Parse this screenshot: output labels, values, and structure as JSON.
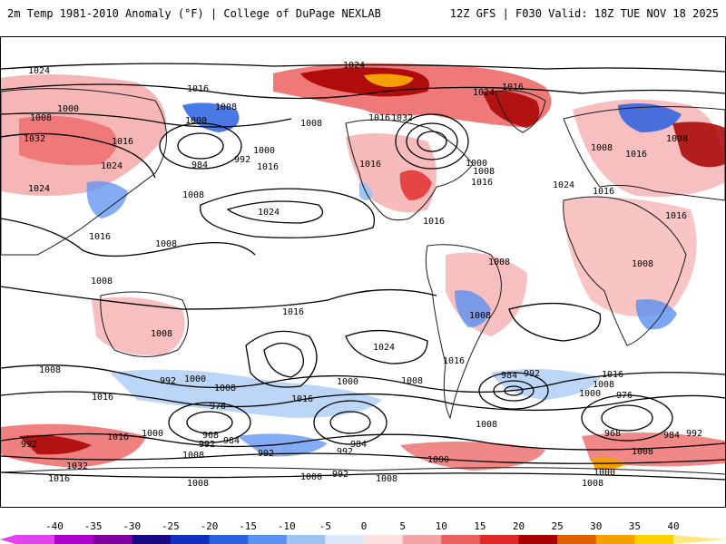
{
  "header": {
    "title": "2m Temp 1981-2010 Anomaly (°F) | College of DuPage NEXLAB",
    "run_info": "12Z GFS | F030 Valid: 18Z TUE NOV 18 2025"
  },
  "colors": {
    "land_outline": "#1a1a1a",
    "contour": "#000000"
  },
  "colorbar": {
    "ticks": [
      "-40",
      "-35",
      "-30",
      "-25",
      "-20",
      "-15",
      "-10",
      "-5",
      "0",
      "5",
      "10",
      "15",
      "20",
      "25",
      "30",
      "35",
      "40"
    ],
    "colors": [
      "#e040f0",
      "#b000d0",
      "#8000a0",
      "#1a0a8a",
      "#1030c0",
      "#2a60e0",
      "#5a90f0",
      "#9ec4f4",
      "#dbe9fb",
      "#fbe0e0",
      "#f4a4a4",
      "#ec6060",
      "#e02828",
      "#a80000",
      "#e06000",
      "#f4a000",
      "#ffd000",
      "#ffe880"
    ]
  },
  "contour_labels": [
    {
      "text": "1024"
    },
    {
      "text": "1016"
    },
    {
      "text": "1008"
    },
    {
      "text": "1000"
    },
    {
      "text": "1032"
    },
    {
      "text": "1016"
    },
    {
      "text": "1024"
    },
    {
      "text": "1024"
    },
    {
      "text": "1016"
    },
    {
      "text": "1008"
    },
    {
      "text": "1008"
    },
    {
      "text": "1000"
    },
    {
      "text": "1008"
    },
    {
      "text": "984"
    },
    {
      "text": "992"
    },
    {
      "text": "1000"
    },
    {
      "text": "1016"
    },
    {
      "text": "1008"
    },
    {
      "text": "1024"
    },
    {
      "text": "1008"
    },
    {
      "text": "1024"
    },
    {
      "text": "1032"
    },
    {
      "text": "1016"
    },
    {
      "text": "1024"
    },
    {
      "text": "1016"
    },
    {
      "text": "1000"
    },
    {
      "text": "1008"
    },
    {
      "text": "1016"
    },
    {
      "text": "1024"
    },
    {
      "text": "1016"
    },
    {
      "text": "1008"
    },
    {
      "text": "1008"
    },
    {
      "text": "1016"
    },
    {
      "text": "1016"
    },
    {
      "text": "1016"
    },
    {
      "text": "1008"
    },
    {
      "text": "1008"
    },
    {
      "text": "1016"
    },
    {
      "text": "1008"
    },
    {
      "text": "1024"
    },
    {
      "text": "1016"
    },
    {
      "text": "1008"
    },
    {
      "text": "1016"
    },
    {
      "text": "1008"
    },
    {
      "text": "1016"
    },
    {
      "text": "992"
    },
    {
      "text": "1000"
    },
    {
      "text": "1008"
    },
    {
      "text": "1016"
    },
    {
      "text": "976"
    },
    {
      "text": "1000"
    },
    {
      "text": "1008"
    },
    {
      "text": "968"
    },
    {
      "text": "1016"
    },
    {
      "text": "1000"
    },
    {
      "text": "984"
    },
    {
      "text": "992"
    },
    {
      "text": "1008"
    },
    {
      "text": "992"
    },
    {
      "text": "984"
    },
    {
      "text": "992"
    },
    {
      "text": "1000"
    },
    {
      "text": "1008"
    },
    {
      "text": "1032"
    },
    {
      "text": "992"
    },
    {
      "text": "1016"
    },
    {
      "text": "1008"
    },
    {
      "text": "1000"
    },
    {
      "text": "992"
    },
    {
      "text": "1008"
    },
    {
      "text": "984"
    },
    {
      "text": "992"
    },
    {
      "text": "1016"
    },
    {
      "text": "1000"
    },
    {
      "text": "1008"
    },
    {
      "text": "976"
    },
    {
      "text": "968"
    },
    {
      "text": "984"
    },
    {
      "text": "992"
    },
    {
      "text": "1008"
    },
    {
      "text": "1000"
    },
    {
      "text": "1008"
    }
  ]
}
